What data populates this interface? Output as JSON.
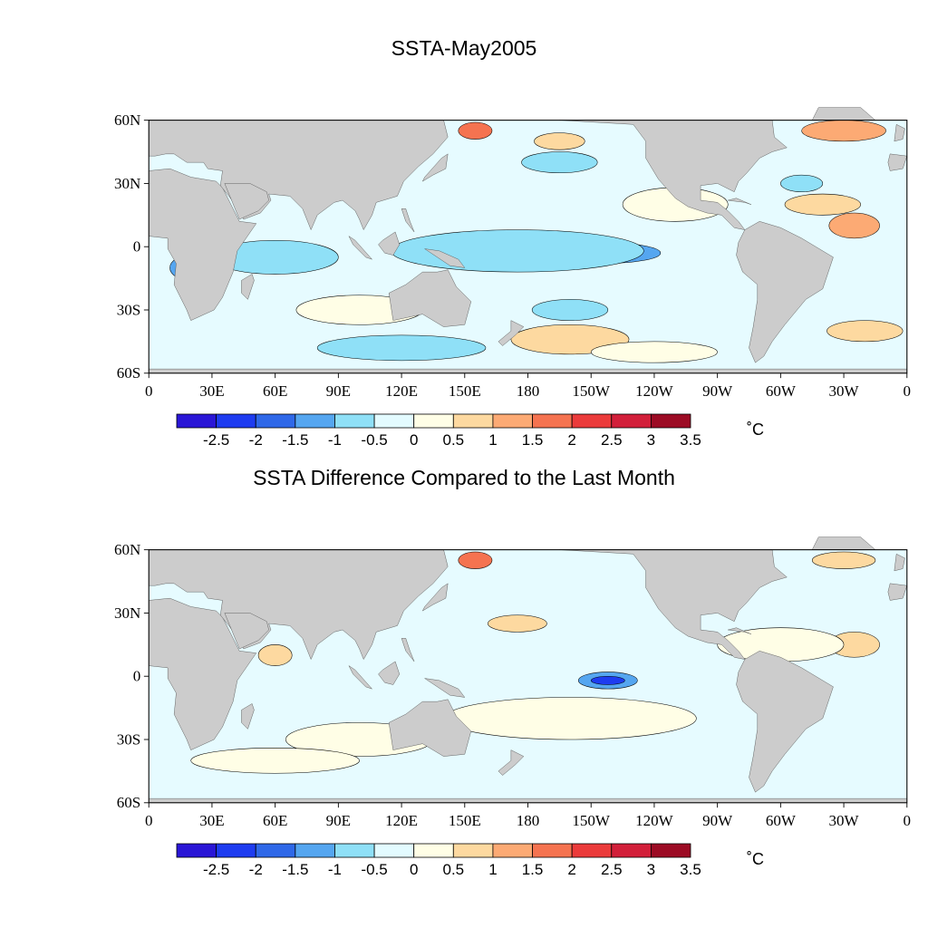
{
  "panels": [
    {
      "title": "SSTA-May2005",
      "colorbar_unit": "˚C"
    },
    {
      "title": "SSTA Difference Compared to the Last Month",
      "colorbar_unit": "˚C"
    }
  ],
  "axes": {
    "lat_labels": [
      "60N",
      "30N",
      "0",
      "30S",
      "60S"
    ],
    "lon_labels": [
      "0",
      "30E",
      "60E",
      "90E",
      "120E",
      "150E",
      "180",
      "150W",
      "120W",
      "90W",
      "60W",
      "30W",
      "0"
    ]
  },
  "colorbar": {
    "labels": [
      "-2.5",
      "-2",
      "-1.5",
      "-1",
      "-0.5",
      "0",
      "0.5",
      "1",
      "1.5",
      "2",
      "2.5",
      "3",
      "3.5"
    ],
    "colors": [
      "#2a16d6",
      "#1e3cf0",
      "#2f68e8",
      "#55a6f0",
      "#8fe0f7",
      "#e3fbff",
      "#fffee6",
      "#fdd9a0",
      "#fcaa74",
      "#f57350",
      "#eb3b3b",
      "#d21f3a",
      "#9c0b24"
    ]
  },
  "colors": {
    "land": "#cccccc",
    "ocean_base": "#e6fbff",
    "contour": "#000000"
  }
}
